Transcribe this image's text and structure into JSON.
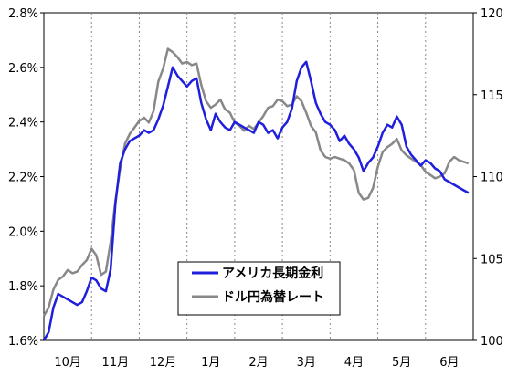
{
  "chart_data": {
    "type": "line",
    "title": "",
    "xlabel": "",
    "ylabel_left": "",
    "ylabel_right": "",
    "x_ticks": [
      "10月",
      "11月",
      "12月",
      "1月",
      "2月",
      "3月",
      "4月",
      "5月",
      "6月"
    ],
    "y_left": {
      "min": 1.6,
      "max": 2.8,
      "ticks": [
        "1.6%",
        "1.8%",
        "2.0%",
        "2.2%",
        "2.4%",
        "2.6%",
        "2.8%"
      ]
    },
    "y_right": {
      "min": 100,
      "max": 120,
      "ticks": [
        "100",
        "105",
        "110",
        "115",
        "120"
      ]
    },
    "grid": "vertical dashed",
    "legend_placement": "bottom-center",
    "series": [
      {
        "name": "アメリカ長期金利",
        "axis": "left",
        "color": "#1f1fdd",
        "x": [
          0,
          0.1,
          0.2,
          0.3,
          0.4,
          0.5,
          0.6,
          0.7,
          0.8,
          0.9,
          1.0,
          1.1,
          1.2,
          1.3,
          1.4,
          1.5,
          1.6,
          1.7,
          1.8,
          1.9,
          2.0,
          2.1,
          2.2,
          2.3,
          2.4,
          2.5,
          2.6,
          2.7,
          2.8,
          2.9,
          3.0,
          3.1,
          3.2,
          3.3,
          3.4,
          3.5,
          3.6,
          3.7,
          3.8,
          3.9,
          4.0,
          4.1,
          4.2,
          4.3,
          4.4,
          4.5,
          4.6,
          4.7,
          4.8,
          4.9,
          5.0,
          5.1,
          5.2,
          5.3,
          5.4,
          5.5,
          5.6,
          5.7,
          5.8,
          5.9,
          6.0,
          6.1,
          6.2,
          6.3,
          6.4,
          6.5,
          6.6,
          6.7,
          6.8,
          6.9,
          7.0,
          7.1,
          7.2,
          7.3,
          7.4,
          7.5,
          7.6,
          7.7,
          7.8,
          7.9,
          8.0,
          8.1,
          8.2,
          8.3,
          8.4,
          8.5,
          8.6,
          8.7,
          8.8,
          8.9
        ],
        "values": [
          1.6,
          1.63,
          1.72,
          1.77,
          1.76,
          1.75,
          1.74,
          1.73,
          1.74,
          1.78,
          1.83,
          1.82,
          1.79,
          1.78,
          1.86,
          2.1,
          2.25,
          2.3,
          2.33,
          2.34,
          2.35,
          2.37,
          2.36,
          2.37,
          2.41,
          2.46,
          2.53,
          2.6,
          2.57,
          2.55,
          2.53,
          2.55,
          2.56,
          2.47,
          2.41,
          2.37,
          2.43,
          2.4,
          2.38,
          2.37,
          2.4,
          2.39,
          2.38,
          2.37,
          2.36,
          2.4,
          2.39,
          2.36,
          2.37,
          2.34,
          2.38,
          2.4,
          2.45,
          2.55,
          2.6,
          2.62,
          2.55,
          2.47,
          2.43,
          2.4,
          2.39,
          2.37,
          2.33,
          2.35,
          2.32,
          2.3,
          2.27,
          2.22,
          2.25,
          2.27,
          2.31,
          2.36,
          2.39,
          2.38,
          2.42,
          2.39,
          2.31,
          2.28,
          2.26,
          2.24,
          2.26,
          2.25,
          2.23,
          2.22,
          2.19,
          2.18,
          2.17,
          2.16,
          2.15,
          2.14
        ]
      },
      {
        "name": "ドル円為替レート",
        "axis": "right",
        "color": "#888888",
        "x": [
          0,
          0.1,
          0.2,
          0.3,
          0.4,
          0.5,
          0.6,
          0.7,
          0.8,
          0.9,
          1.0,
          1.1,
          1.2,
          1.3,
          1.4,
          1.5,
          1.6,
          1.7,
          1.8,
          1.9,
          2.0,
          2.1,
          2.2,
          2.3,
          2.4,
          2.5,
          2.6,
          2.7,
          2.8,
          2.9,
          3.0,
          3.1,
          3.2,
          3.3,
          3.4,
          3.5,
          3.6,
          3.7,
          3.8,
          3.9,
          4.0,
          4.1,
          4.2,
          4.3,
          4.4,
          4.5,
          4.6,
          4.7,
          4.8,
          4.9,
          5.0,
          5.1,
          5.2,
          5.3,
          5.4,
          5.5,
          5.6,
          5.7,
          5.8,
          5.9,
          6.0,
          6.1,
          6.2,
          6.3,
          6.4,
          6.5,
          6.6,
          6.7,
          6.8,
          6.9,
          7.0,
          7.1,
          7.2,
          7.3,
          7.4,
          7.5,
          7.6,
          7.7,
          7.8,
          7.9,
          8.0,
          8.1,
          8.2,
          8.3,
          8.4,
          8.5,
          8.6,
          8.7,
          8.8,
          8.9
        ],
        "values": [
          101.5,
          102,
          103.1,
          103.7,
          103.9,
          104.3,
          104.1,
          104.2,
          104.6,
          104.9,
          105.6,
          105.2,
          104,
          104.2,
          106,
          108.5,
          110.5,
          112,
          112.6,
          113,
          113.4,
          113.6,
          113.3,
          114,
          115.8,
          116.6,
          117.8,
          117.6,
          117.3,
          116.9,
          117,
          116.8,
          116.9,
          115.6,
          114.6,
          114.2,
          114.4,
          114.7,
          114.1,
          113.9,
          113.3,
          113.1,
          112.8,
          113.1,
          112.9,
          113.3,
          113.7,
          114.2,
          114.3,
          114.7,
          114.6,
          114.3,
          114.4,
          114.9,
          114.6,
          113.9,
          113.1,
          112.7,
          111.6,
          111.2,
          111.1,
          111.2,
          111.1,
          111,
          110.8,
          110.4,
          109,
          108.6,
          108.7,
          109.3,
          110.6,
          111.5,
          111.8,
          112,
          112.3,
          111.6,
          111.3,
          111.1,
          110.9,
          110.7,
          110.3,
          110.1,
          109.9,
          110,
          110.2,
          110.9,
          111.2,
          111,
          110.9,
          110.8
        ]
      }
    ]
  }
}
